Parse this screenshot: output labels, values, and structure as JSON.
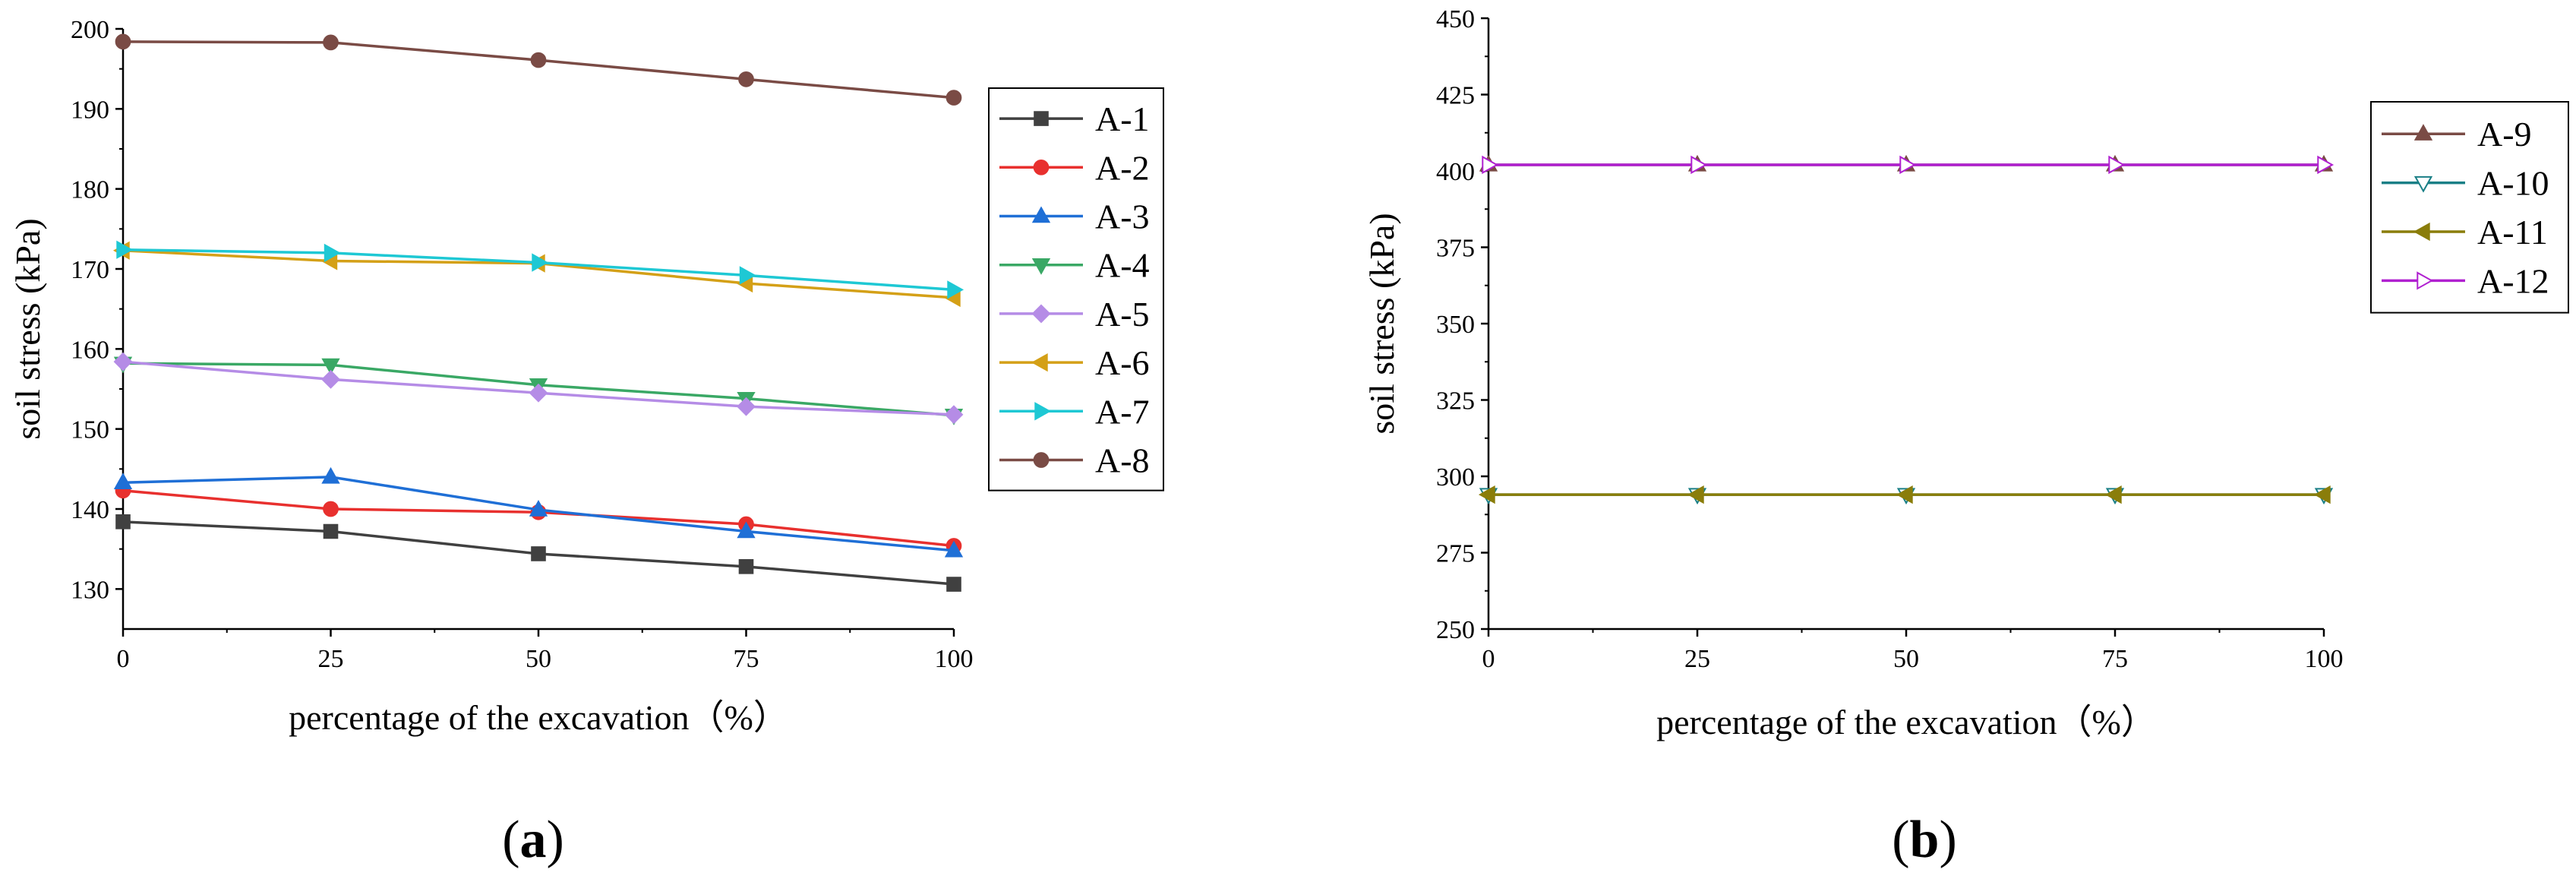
{
  "figure": {
    "captions": [
      {
        "open": "(",
        "letter": "a",
        "close": ")"
      },
      {
        "open": "(",
        "letter": "b",
        "close": ")"
      }
    ]
  },
  "chart_data": [
    {
      "type": "line",
      "panel": "a",
      "xlabel": "percentage of the excavation（%）",
      "ylabel": "soil stress (kPa)",
      "x": [
        0,
        25,
        50,
        75,
        100
      ],
      "xticks": [
        "0",
        "25",
        "50",
        "75",
        "100"
      ],
      "xlim": [
        0,
        100
      ],
      "ylim": [
        125,
        200
      ],
      "yticks": [
        130,
        140,
        150,
        160,
        170,
        180,
        190,
        200
      ],
      "legend_position": "right",
      "series": [
        {
          "name": "A-1",
          "color": "#404040",
          "marker": "square",
          "values": [
            138.4,
            137.2,
            134.4,
            132.8,
            130.6
          ]
        },
        {
          "name": "A-2",
          "color": "#e8302e",
          "marker": "circle",
          "values": [
            142.3,
            140.0,
            139.6,
            138.1,
            135.4
          ]
        },
        {
          "name": "A-3",
          "color": "#1f6fd6",
          "marker": "triangle-up",
          "values": [
            143.3,
            144.0,
            139.9,
            137.2,
            134.8
          ]
        },
        {
          "name": "A-4",
          "color": "#3aa865",
          "marker": "triangle-down",
          "values": [
            158.2,
            158.0,
            155.5,
            153.8,
            151.7
          ]
        },
        {
          "name": "A-5",
          "color": "#b58ce6",
          "marker": "diamond",
          "values": [
            158.4,
            156.2,
            154.5,
            152.8,
            151.8
          ]
        },
        {
          "name": "A-6",
          "color": "#d4a017",
          "marker": "triangle-left",
          "values": [
            172.3,
            171.0,
            170.7,
            168.2,
            166.4
          ]
        },
        {
          "name": "A-7",
          "color": "#1ec8d4",
          "marker": "triangle-right",
          "values": [
            172.4,
            172.0,
            170.8,
            169.2,
            167.4
          ]
        },
        {
          "name": "A-8",
          "color": "#7a4b45",
          "marker": "circle",
          "values": [
            198.4,
            198.3,
            196.1,
            193.7,
            191.4
          ]
        }
      ]
    },
    {
      "type": "line",
      "panel": "b",
      "xlabel": "percentage of the excavation（%）",
      "ylabel": "soil stress (kPa)",
      "x": [
        0,
        25,
        50,
        75,
        100
      ],
      "xticks": [
        "0",
        "25",
        "50",
        "75",
        "100"
      ],
      "xlim": [
        0,
        100
      ],
      "ylim": [
        250,
        450
      ],
      "yticks": [
        250,
        275,
        300,
        325,
        350,
        375,
        400,
        425,
        450
      ],
      "legend_position": "right",
      "series": [
        {
          "name": "A-9",
          "color": "#7a4b45",
          "marker": "triangle-up",
          "hollow": false,
          "values": [
            402,
            402,
            402,
            402,
            402
          ]
        },
        {
          "name": "A-10",
          "color": "#1a7f86",
          "marker": "triangle-down",
          "hollow": true,
          "values": [
            294,
            294,
            294,
            294,
            294
          ]
        },
        {
          "name": "A-11",
          "color": "#8a7d0a",
          "marker": "triangle-left",
          "hollow": false,
          "values": [
            294,
            294,
            294,
            294,
            294
          ]
        },
        {
          "name": "A-12",
          "color": "#b020d0",
          "marker": "triangle-right",
          "hollow": true,
          "values": [
            402,
            402,
            402,
            402,
            402
          ]
        }
      ]
    }
  ]
}
